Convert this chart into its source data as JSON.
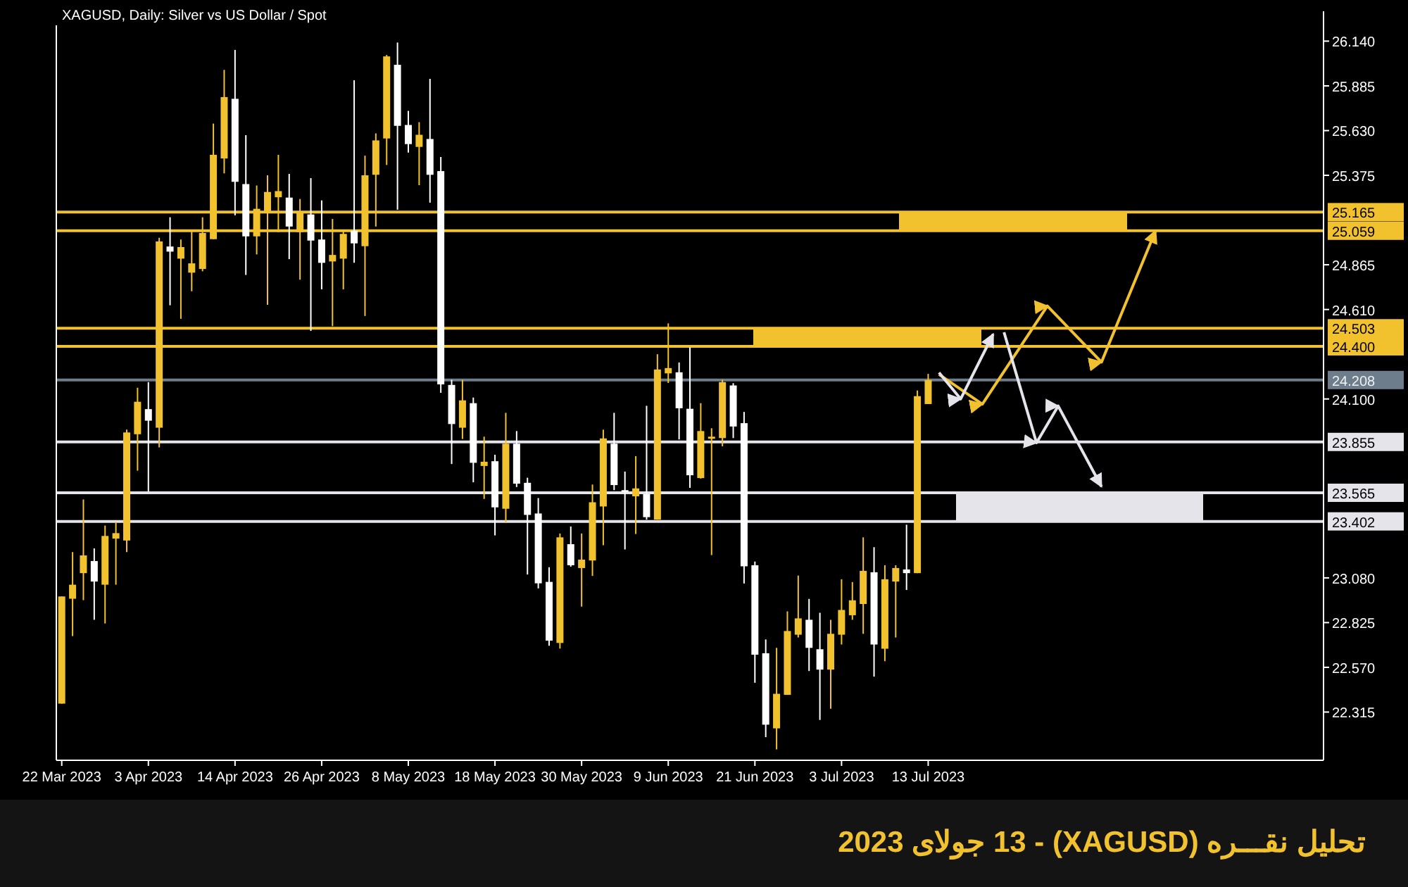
{
  "chart_data": {
    "type": "candlestick",
    "title": "XAGUSD, Daily:  Silver vs US Dollar / Spot",
    "annotations": [
      "تحلیل نقـــره  (XAGUSD)  - 13 جولای  2023"
    ],
    "categories": [
      "22 Mar 2023",
      null,
      null,
      null,
      null,
      null,
      null,
      null,
      "3 Apr 2023",
      null,
      null,
      null,
      null,
      null,
      null,
      null,
      "14 Apr 2023",
      null,
      null,
      null,
      null,
      null,
      null,
      null,
      "26 Apr 2023",
      null,
      null,
      null,
      null,
      null,
      null,
      null,
      "8 May 2023",
      null,
      null,
      null,
      null,
      null,
      null,
      null,
      "18 May 2023",
      null,
      null,
      null,
      null,
      null,
      null,
      null,
      "30 May 2023",
      null,
      null,
      null,
      null,
      null,
      null,
      null,
      "9 Jun 2023",
      null,
      null,
      null,
      null,
      null,
      null,
      null,
      "21 Jun 2023",
      null,
      null,
      null,
      null,
      null,
      null,
      null,
      "3 Jul 2023",
      null,
      null,
      null,
      null,
      null,
      null,
      null,
      "13 Jul 2023",
      null,
      null,
      null,
      null,
      null,
      null,
      null,
      null,
      null,
      null,
      null,
      null,
      null,
      null,
      null,
      null,
      null,
      null,
      null,
      null,
      null,
      null,
      null,
      null,
      null,
      null,
      null,
      null,
      null,
      null,
      null,
      null,
      null,
      null,
      null,
      null
    ],
    "ohlc": [
      [
        22.363,
        22.974,
        22.363,
        22.974
      ],
      [
        22.961,
        23.227,
        22.748,
        23.041
      ],
      [
        23.107,
        23.527,
        22.953,
        23.208
      ],
      [
        23.176,
        23.248,
        22.841,
        23.059
      ],
      [
        23.041,
        23.378,
        22.82,
        23.319
      ],
      [
        23.304,
        23.399,
        23.041,
        23.335
      ],
      [
        23.293,
        23.925,
        23.227,
        23.909
      ],
      [
        23.899,
        24.164,
        23.691,
        24.084
      ],
      [
        24.042,
        24.196,
        23.572,
        23.976
      ],
      [
        23.936,
        25.019,
        23.824,
        24.998
      ],
      [
        24.969,
        25.136,
        24.634,
        24.94
      ],
      [
        24.9,
        25.009,
        24.557,
        24.966
      ],
      [
        24.82,
        25.059,
        24.714,
        24.873
      ],
      [
        24.841,
        25.136,
        24.828,
        25.046
      ],
      [
        25.011,
        25.67,
        25.011,
        25.492
      ],
      [
        25.471,
        25.976,
        25.386,
        25.821
      ],
      [
        25.811,
        26.09,
        25.147,
        25.338
      ],
      [
        25.325,
        25.604,
        24.807,
        25.027
      ],
      [
        25.027,
        25.317,
        24.924,
        25.184
      ],
      [
        25.171,
        25.375,
        24.637,
        25.28
      ],
      [
        25.25,
        25.492,
        25.051,
        25.285
      ],
      [
        25.248,
        25.383,
        24.897,
        25.083
      ],
      [
        25.051,
        25.24,
        24.78,
        25.165
      ],
      [
        25.152,
        25.359,
        24.488,
        25.003
      ],
      [
        25.009,
        25.232,
        24.725,
        24.876
      ],
      [
        24.884,
        25.126,
        24.515,
        24.921
      ],
      [
        24.9,
        25.059,
        24.725,
        25.041
      ],
      [
        25.059,
        25.917,
        24.876,
        24.987
      ],
      [
        24.971,
        25.487,
        24.573,
        25.375
      ],
      [
        25.378,
        25.614,
        25.083,
        25.574
      ],
      [
        25.585,
        26.061,
        25.434,
        26.053
      ],
      [
        26.005,
        26.132,
        25.179,
        25.657
      ],
      [
        25.662,
        25.742,
        25.505,
        25.553
      ],
      [
        25.537,
        25.678,
        25.319,
        25.606
      ],
      [
        25.582,
        25.925,
        25.219,
        25.378
      ],
      [
        25.399,
        25.479,
        24.135,
        24.183
      ],
      [
        24.18,
        24.209,
        23.729,
        23.957
      ],
      [
        23.936,
        24.209,
        23.872,
        24.092
      ],
      [
        24.076,
        24.108,
        23.625,
        23.736
      ],
      [
        23.718,
        23.885,
        23.53,
        23.742
      ],
      [
        23.745,
        23.782,
        23.322,
        23.482
      ],
      [
        23.474,
        24.021,
        23.394,
        23.845
      ],
      [
        23.845,
        23.917,
        23.598,
        23.617
      ],
      [
        23.622,
        23.651,
        23.099,
        23.439
      ],
      [
        23.447,
        23.535,
        23.02,
        23.049
      ],
      [
        23.057,
        23.141,
        22.693,
        22.722
      ],
      [
        22.709,
        23.333,
        22.677,
        23.311
      ],
      [
        23.272,
        23.373,
        23.144,
        23.152
      ],
      [
        23.136,
        23.333,
        22.916,
        23.184
      ],
      [
        23.179,
        23.612,
        23.091,
        23.511
      ],
      [
        23.487,
        23.925,
        23.266,
        23.875
      ],
      [
        23.845,
        24.021,
        23.58,
        23.609
      ],
      [
        23.58,
        23.686,
        23.242,
        23.569
      ],
      [
        23.545,
        23.774,
        23.33,
        23.59
      ],
      [
        23.558,
        24.061,
        23.412,
        23.426
      ],
      [
        23.412,
        24.355,
        23.412,
        24.268
      ],
      [
        24.246,
        24.531,
        24.191,
        24.276
      ],
      [
        24.252,
        24.308,
        23.869,
        24.047
      ],
      [
        24.044,
        24.395,
        23.593,
        23.665
      ],
      [
        23.649,
        24.076,
        23.646,
        23.917
      ],
      [
        23.877,
        23.933,
        23.21,
        23.885
      ],
      [
        23.877,
        24.209,
        23.83,
        24.196
      ],
      [
        24.177,
        24.19,
        23.877,
        23.943
      ],
      [
        23.962,
        24.026,
        23.048,
        23.146
      ],
      [
        23.152,
        23.173,
        22.482,
        22.642
      ],
      [
        22.65,
        22.729,
        22.172,
        22.243
      ],
      [
        22.222,
        22.681,
        22.102,
        22.419
      ],
      [
        22.413,
        22.889,
        22.413,
        22.777
      ],
      [
        22.756,
        23.093,
        22.74,
        22.849
      ],
      [
        22.841,
        22.96,
        22.549,
        22.681
      ],
      [
        22.673,
        22.881,
        22.27,
        22.557
      ],
      [
        22.557,
        22.841,
        22.334,
        22.761
      ],
      [
        22.756,
        23.072,
        22.7,
        22.897
      ],
      [
        22.867,
        23.056,
        22.841,
        22.952
      ],
      [
        22.931,
        23.311,
        22.761,
        23.12
      ],
      [
        23.112,
        23.255,
        22.517,
        22.7
      ],
      [
        22.676,
        23.152,
        22.605,
        23.072
      ],
      [
        23.059,
        23.152,
        22.74,
        23.136
      ],
      [
        23.128,
        23.383,
        23.011,
        23.107
      ],
      [
        23.107,
        24.148,
        23.107,
        24.116
      ],
      [
        24.071,
        24.243,
        24.071,
        24.208
      ],
      null,
      null,
      null,
      null,
      null,
      null,
      null,
      null,
      null,
      null,
      null,
      null,
      null,
      null,
      null,
      null,
      null,
      null,
      null,
      null,
      null,
      null,
      null,
      null,
      null,
      null,
      null,
      null,
      null,
      null,
      null,
      null,
      null,
      null,
      null,
      null
    ],
    "colors": [
      "#f2c12e",
      "#f2c12e",
      "#f2c12e",
      "#ffffff",
      "#f2c12e",
      "#f2c12e",
      "#f2c12e",
      "#f2c12e",
      "#ffffff",
      "#f2c12e",
      "#ffffff",
      "#f2c12e",
      "#f2c12e",
      "#f2c12e",
      "#f2c12e",
      "#f2c12e",
      "#ffffff",
      "#ffffff",
      "#f2c12e",
      "#f2c12e",
      "#f2c12e",
      "#ffffff",
      "#f2c12e",
      "#ffffff",
      "#ffffff",
      "#f2c12e",
      "#f2c12e",
      "#ffffff",
      "#f2c12e",
      "#f2c12e",
      "#f2c12e",
      "#ffffff",
      "#ffffff",
      "#f2c12e",
      "#ffffff",
      "#ffffff",
      "#ffffff",
      "#f2c12e",
      "#ffffff",
      "#f2c12e",
      "#ffffff",
      "#f2c12e",
      "#ffffff",
      "#ffffff",
      "#ffffff",
      "#ffffff",
      "#f2c12e",
      "#ffffff",
      "#f2c12e",
      "#f2c12e",
      "#f2c12e",
      "#ffffff",
      "#ffffff",
      "#f2c12e",
      "#ffffff",
      "#f2c12e",
      "#f2c12e",
      "#ffffff",
      "#ffffff",
      "#f2c12e",
      "#f2c12e",
      "#f2c12e",
      "#ffffff",
      "#ffffff",
      "#ffffff",
      "#ffffff",
      "#f2c12e",
      "#f2c12e",
      "#f2c12e",
      "#ffffff",
      "#ffffff",
      "#f2c12e",
      "#f2c12e",
      "#f2c12e",
      "#f2c12e",
      "#ffffff",
      "#f2c12e",
      "#f2c12e",
      "#ffffff",
      "#f2c12e",
      "#f2c12e",
      null,
      null,
      null,
      null,
      null,
      null,
      null,
      null,
      null,
      null,
      null,
      null,
      null,
      null,
      null,
      null,
      null,
      null,
      null,
      null,
      null,
      null,
      null,
      null,
      null,
      null,
      null,
      null,
      null,
      null,
      null,
      null,
      null,
      null,
      null,
      null
    ],
    "series": [
      {
        "type": "line",
        "color": "#f2c12e",
        "values": [
          null,
          null,
          null,
          null,
          null,
          null,
          null,
          null,
          null,
          null,
          null,
          null,
          null,
          null,
          null,
          null,
          null,
          null,
          null,
          null,
          null,
          null,
          null,
          null,
          null,
          null,
          null,
          null,
          null,
          null,
          null,
          null,
          null,
          null,
          null,
          null,
          null,
          null,
          null,
          null,
          null,
          null,
          null,
          null,
          null,
          null,
          null,
          null,
          null,
          null,
          null,
          null,
          null,
          null,
          null,
          null,
          null,
          null,
          null,
          null,
          null,
          null,
          null,
          null,
          null,
          null,
          null,
          null,
          null,
          null,
          null,
          null,
          null,
          null,
          null,
          null,
          null,
          null,
          null,
          null,
          null,
          24.24,
          null,
          null,
          null,
          24.07,
          null,
          null,
          null,
          null,
          null,
          24.63,
          null,
          null,
          null,
          null,
          24.31,
          null,
          null,
          null,
          null,
          25.06,
          null,
          null,
          null,
          null,
          null,
          null,
          null,
          null,
          null,
          null,
          null,
          null,
          null,
          null,
          null
        ]
      },
      {
        "type": "line",
        "color": "#e4e4ea",
        "values": [
          null,
          null,
          null,
          null,
          null,
          null,
          null,
          null,
          null,
          null,
          null,
          null,
          null,
          null,
          null,
          null,
          null,
          null,
          null,
          null,
          null,
          null,
          null,
          null,
          null,
          null,
          null,
          null,
          null,
          null,
          null,
          null,
          null,
          null,
          null,
          null,
          null,
          null,
          null,
          null,
          null,
          null,
          null,
          null,
          null,
          null,
          null,
          null,
          null,
          null,
          null,
          null,
          null,
          null,
          null,
          null,
          null,
          null,
          null,
          null,
          null,
          null,
          null,
          null,
          null,
          null,
          null,
          null,
          null,
          null,
          null,
          null,
          null,
          null,
          null,
          null,
          null,
          null,
          null,
          null,
          null,
          24.25,
          null,
          24.1,
          null,
          null,
          24.47,
          null,
          null,
          null,
          null,
          null,
          null,
          null,
          null,
          null,
          null,
          null,
          null,
          null,
          null,
          null,
          null,
          null,
          null,
          null,
          null,
          null,
          null,
          null,
          null,
          null,
          null,
          null,
          null,
          null,
          null
        ]
      },
      {
        "type": "line",
        "color": "#e4e4ea",
        "values": [
          null,
          null,
          null,
          null,
          null,
          null,
          null,
          null,
          null,
          null,
          null,
          null,
          null,
          null,
          null,
          null,
          null,
          null,
          null,
          null,
          null,
          null,
          null,
          null,
          null,
          null,
          null,
          null,
          null,
          null,
          null,
          null,
          null,
          null,
          null,
          null,
          null,
          null,
          null,
          null,
          null,
          null,
          null,
          null,
          null,
          null,
          null,
          null,
          null,
          null,
          null,
          null,
          null,
          null,
          null,
          null,
          null,
          null,
          null,
          null,
          null,
          null,
          null,
          null,
          null,
          null,
          null,
          null,
          null,
          null,
          null,
          null,
          null,
          null,
          null,
          null,
          null,
          null,
          null,
          null,
          null,
          null,
          null,
          null,
          null,
          null,
          null,
          24.48,
          null,
          null,
          23.85,
          null,
          24.06,
          null,
          null,
          null,
          23.6,
          null,
          null,
          null,
          null,
          null,
          null,
          null,
          null,
          null,
          null,
          null,
          null,
          null,
          null,
          null,
          null,
          null,
          null,
          null,
          null
        ]
      }
    ],
    "ylim": [
      22.04,
      26.23
    ],
    "yticks": [
      {
        "value": 26.14,
        "label": "26.140"
      },
      {
        "value": 25.885,
        "label": "25.885"
      },
      {
        "value": 25.63,
        "label": "25.630"
      },
      {
        "value": 25.375,
        "label": "25.375"
      },
      {
        "value": 24.865,
        "label": "24.865"
      },
      {
        "value": 24.61,
        "label": "24.610"
      },
      {
        "value": 24.1,
        "label": "24.100"
      },
      {
        "value": 23.08,
        "label": "23.080"
      },
      {
        "value": 22.825,
        "label": "22.825"
      },
      {
        "value": 22.57,
        "label": "22.570"
      },
      {
        "value": 22.315,
        "label": "22.315"
      }
    ],
    "ref_lines": [
      {
        "axis": "y",
        "value": 25.165,
        "label": "25.165",
        "color": "#f2c12e"
      },
      {
        "axis": "y",
        "value": 25.059,
        "label": "25.059",
        "color": "#f2c12e"
      },
      {
        "axis": "y",
        "value": 24.503,
        "label": "24.503",
        "color": "#f2c12e"
      },
      {
        "axis": "y",
        "value": 24.4,
        "label": "24.400",
        "color": "#f2c12e"
      },
      {
        "axis": "y",
        "value": 24.208,
        "label": "24.208",
        "color": "#6e7d8c"
      },
      {
        "axis": "y",
        "value": 23.855,
        "label": "23.855",
        "color": "#e4e4ea"
      },
      {
        "axis": "y",
        "value": 23.565,
        "label": "23.565",
        "color": "#e4e4ea"
      },
      {
        "axis": "y",
        "value": 23.402,
        "label": "23.402",
        "color": "#e4e4ea"
      }
    ]
  }
}
